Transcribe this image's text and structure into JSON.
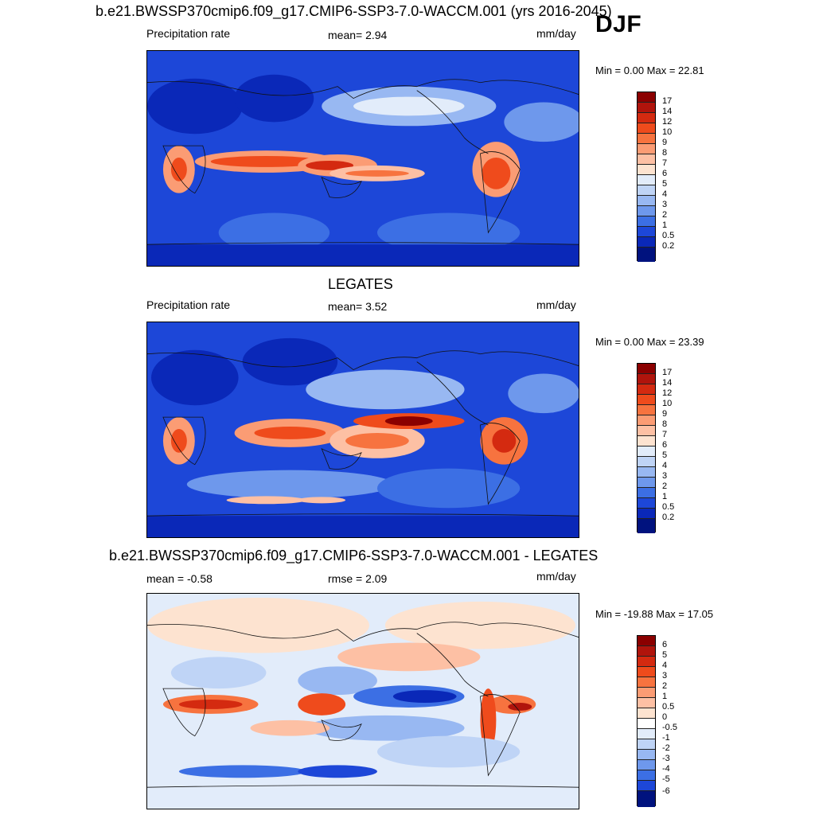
{
  "header": {
    "season": "DJF"
  },
  "panels": [
    {
      "title": "b.e21.BWSSP370cmip6.f09_g17.CMIP6-SSP3-7.0-WACCM.001 (yrs 2016-2045)",
      "left_label": "Precipitation rate",
      "center_label": "mean=   2.94",
      "units": "mm/day",
      "minmax": "Min =   0.00 Max =  22.81"
    },
    {
      "title": "LEGATES",
      "left_label": "Precipitation rate",
      "center_label": "mean=   3.52",
      "units": "mm/day",
      "minmax": "Min =   0.00 Max =  23.39"
    },
    {
      "title": "b.e21.BWSSP370cmip6.f09_g17.CMIP6-SSP3-7.0-WACCM.001 - LEGATES",
      "left_label": "mean =  -0.58",
      "center_label": "rmse =   2.09",
      "units": "mm/day",
      "minmax": "Min = -19.88 Max =  17.05"
    }
  ],
  "colorbars": {
    "precip": {
      "labels": [
        "17",
        "14",
        "12",
        "10",
        "9",
        "8",
        "7",
        "6",
        "5",
        "4",
        "3",
        "2",
        "1",
        "0.5",
        "0.2"
      ],
      "colors": [
        "#8b0000",
        "#b0140c",
        "#d42a10",
        "#ef4b1c",
        "#f7733f",
        "#fb9c74",
        "#fdc0a4",
        "#fde3d0",
        "#e2ecfa",
        "#bfd4f6",
        "#98b8f2",
        "#6e98ec",
        "#3c6fe4",
        "#1d47d8",
        "#0a28b8",
        "#00127e"
      ]
    },
    "diff": {
      "labels": [
        "6",
        "5",
        "4",
        "3",
        "2",
        "1",
        "0.5",
        "0",
        "-0.5",
        "-1",
        "-2",
        "-3",
        "-4",
        "-5",
        "-6"
      ],
      "colors": [
        "#8b0000",
        "#b0140c",
        "#d42a10",
        "#ef4b1c",
        "#f7733f",
        "#fb9c74",
        "#fdc0a4",
        "#fde3d0",
        "#ffffff",
        "#e2ecfa",
        "#bfd4f6",
        "#98b8f2",
        "#6e98ec",
        "#3c6fe4",
        "#1d47d8",
        "#00127e"
      ]
    }
  }
}
